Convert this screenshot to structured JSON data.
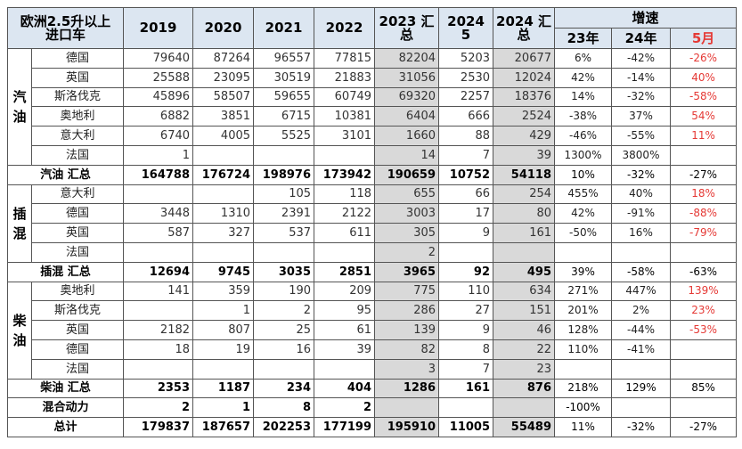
{
  "header": {
    "title_line1": "欧洲2.5升以上",
    "title_line2": "进口车",
    "years": [
      "2019",
      "2020",
      "2021",
      "2022"
    ],
    "col_2023": [
      "2023 汇",
      "总"
    ],
    "col_2024_5": [
      "2024",
      "5"
    ],
    "col_2024": [
      "2024 汇",
      "总"
    ],
    "growth": "增速",
    "growth_cols": [
      "23年",
      "24年",
      "5月"
    ]
  },
  "sections": [
    {
      "label": "汽油",
      "rows": [
        {
          "name": "德国",
          "values": [
            79640,
            87264,
            96557,
            77815,
            82204,
            5203,
            20677,
            "6%",
            "-42%",
            "-26%"
          ]
        },
        {
          "name": "英国",
          "values": [
            25588,
            23095,
            30519,
            21883,
            31056,
            2530,
            12024,
            "42%",
            "-14%",
            "40%"
          ]
        },
        {
          "name": "斯洛伐克",
          "values": [
            45896,
            58507,
            59655,
            60749,
            69320,
            2257,
            18376,
            "14%",
            "-32%",
            "-58%"
          ]
        },
        {
          "name": "奥地利",
          "values": [
            6882,
            3851,
            6715,
            10381,
            6404,
            666,
            2524,
            "-38%",
            "37%",
            "54%"
          ]
        },
        {
          "name": "意大利",
          "values": [
            6740,
            4005,
            5525,
            3101,
            1660,
            88,
            429,
            "-46%",
            "-55%",
            "11%"
          ]
        },
        {
          "name": "法国",
          "values": [
            1,
            null,
            null,
            null,
            14,
            7,
            39,
            "1300%",
            "3800%",
            null
          ]
        }
      ],
      "subtotal": {
        "name": "汽油 汇总",
        "values": [
          164788,
          176724,
          198976,
          173942,
          190659,
          10752,
          54118,
          "10%",
          "-32%",
          "-27%"
        ]
      }
    },
    {
      "label": "插混",
      "rows": [
        {
          "name": "意大利",
          "values": [
            null,
            null,
            105,
            118,
            655,
            66,
            254,
            "455%",
            "40%",
            "18%"
          ]
        },
        {
          "name": "德国",
          "values": [
            3448,
            1310,
            2391,
            2122,
            3003,
            17,
            80,
            "42%",
            "-91%",
            "-88%"
          ]
        },
        {
          "name": "英国",
          "values": [
            587,
            327,
            537,
            611,
            305,
            9,
            161,
            "-50%",
            "16%",
            "-79%"
          ]
        },
        {
          "name": "法国",
          "values": [
            null,
            null,
            null,
            null,
            2,
            null,
            null,
            null,
            null,
            null
          ]
        }
      ],
      "subtotal": {
        "name": "插混 汇总",
        "values": [
          12694,
          9745,
          3035,
          2851,
          3965,
          92,
          495,
          "39%",
          "-58%",
          "-63%"
        ]
      }
    },
    {
      "label": "柴油",
      "rows": [
        {
          "name": "奥地利",
          "values": [
            141,
            359,
            190,
            209,
            775,
            110,
            634,
            "271%",
            "447%",
            "139%"
          ]
        },
        {
          "name": "斯洛伐克",
          "values": [
            null,
            1,
            2,
            95,
            286,
            27,
            151,
            "201%",
            "2%",
            "23%"
          ]
        },
        {
          "name": "英国",
          "values": [
            2182,
            807,
            25,
            61,
            139,
            9,
            46,
            "128%",
            "-44%",
            "-53%"
          ]
        },
        {
          "name": "德国",
          "values": [
            18,
            19,
            16,
            39,
            82,
            8,
            22,
            "110%",
            "-41%",
            null
          ]
        },
        {
          "name": "法国",
          "values": [
            null,
            null,
            null,
            null,
            3,
            7,
            23,
            null,
            null,
            null
          ]
        }
      ],
      "subtotal": {
        "name": "柴油 汇总",
        "values": [
          2353,
          1187,
          234,
          404,
          1286,
          161,
          876,
          "218%",
          "129%",
          "85%"
        ]
      }
    }
  ],
  "extra_rows": [
    {
      "name": "混合动力",
      "values": [
        2,
        1,
        8,
        2,
        null,
        null,
        null,
        "-100%",
        null,
        null
      ]
    },
    {
      "name": "总计",
      "values": [
        179837,
        187657,
        202253,
        177199,
        195910,
        11005,
        55489,
        "11%",
        "-32%",
        "-27%"
      ]
    }
  ]
}
